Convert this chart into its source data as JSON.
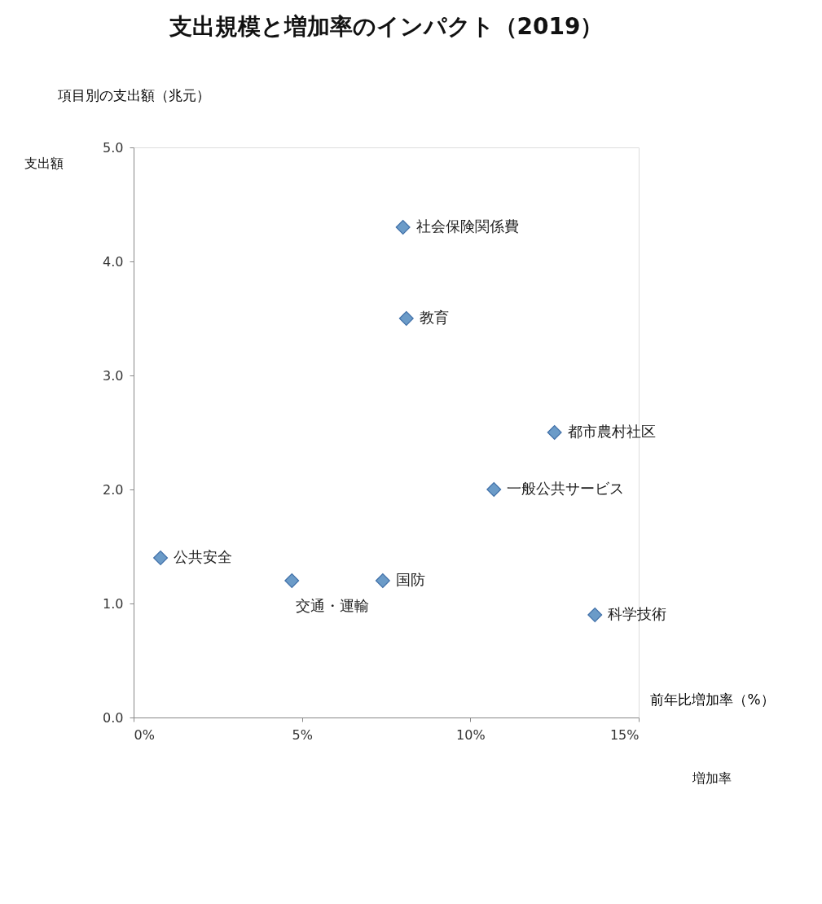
{
  "chart_data": {
    "type": "scatter",
    "title": "支出規模と増加率のインパクト（2019）",
    "xlabel": "前年比増加率（%）",
    "ylabel": "項目別の支出額（兆元）",
    "x": [
      8.0,
      8.1,
      12.5,
      10.7,
      0.8,
      4.7,
      7.4,
      13.7
    ],
    "values": [
      4.3,
      3.5,
      2.5,
      2.0,
      1.4,
      1.2,
      1.2,
      0.9
    ],
    "color": "#6b9bc8",
    "marker": "diamond",
    "grid": false,
    "xlim": [
      0,
      15
    ],
    "xticks": [
      {
        "value": 0,
        "label": "0%"
      },
      {
        "value": 5,
        "label": "5%"
      },
      {
        "value": 10,
        "label": "10%"
      },
      {
        "value": 15,
        "label": "15%"
      }
    ],
    "ylim": [
      0,
      5
    ],
    "yticks": [
      {
        "value": 0,
        "label": "0.0"
      },
      {
        "value": 1,
        "label": "1.0"
      },
      {
        "value": 2,
        "label": "2.0"
      },
      {
        "value": 3,
        "label": "3.0"
      },
      {
        "value": 4,
        "label": "4.0"
      },
      {
        "value": 5,
        "label": "5.0"
      }
    ],
    "annotations": [
      {
        "text": "社会保険関係費",
        "x": 8.0,
        "y": 4.3
      },
      {
        "text": "教育",
        "x": 8.1,
        "y": 3.5
      },
      {
        "text": "都市農村社区",
        "x": 12.5,
        "y": 2.5
      },
      {
        "text": "一般公共サービス",
        "x": 10.7,
        "y": 2.0
      },
      {
        "text": "公共安全",
        "x": 0.8,
        "y": 1.4
      },
      {
        "text": "交通・運輸",
        "x": 4.7,
        "y": 1.2
      },
      {
        "text": "国防",
        "x": 7.4,
        "y": 1.2
      },
      {
        "text": "科学技術",
        "x": 13.7,
        "y": 0.9
      },
      "支出額",
      "増加率"
    ]
  }
}
